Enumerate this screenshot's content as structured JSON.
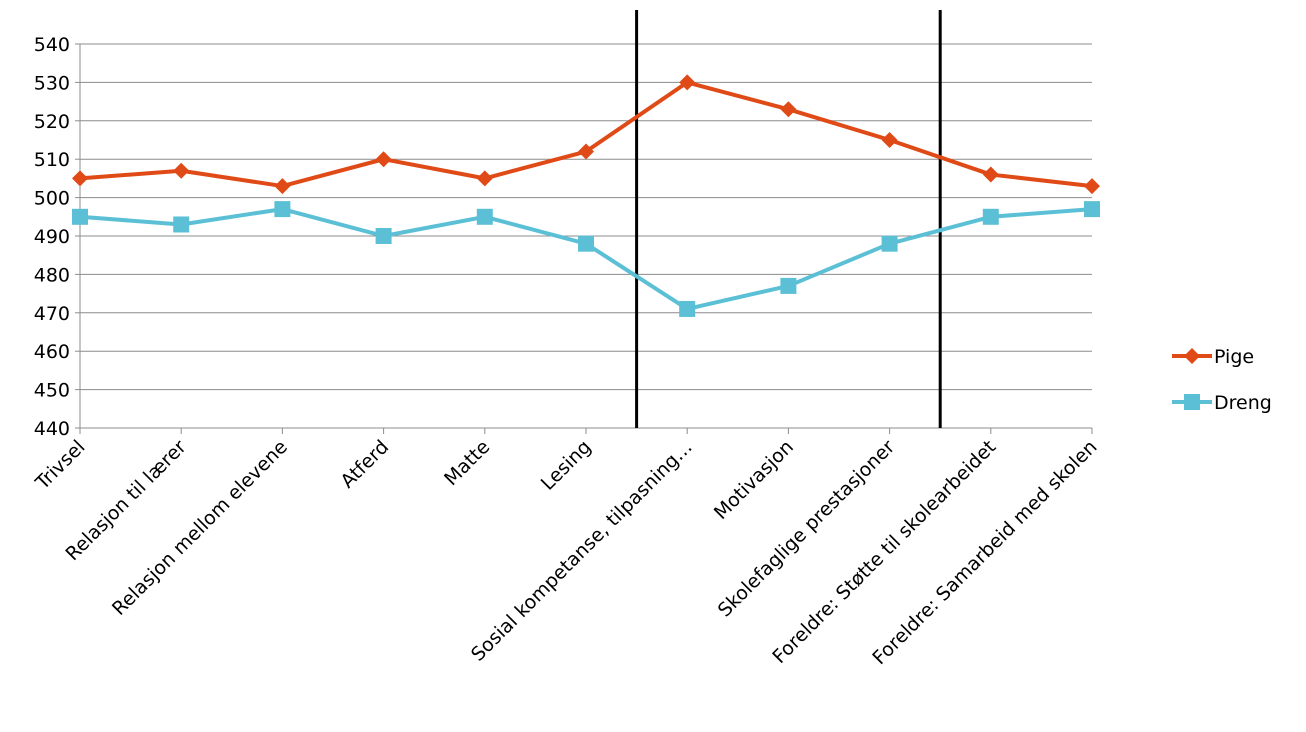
{
  "chart_data": {
    "type": "line",
    "categories": [
      "Trivsel",
      "Relasjon til lærer",
      "Relasjon mellom elevene",
      "Atferd",
      "Matte",
      "Lesing",
      "Sosial kompetanse, tilpasning…",
      "Motivasjon",
      "Skolefaglige prestasjoner",
      "Foreldre: Støtte til skolearbeidet",
      "Foreldre: Samarbeid med skolen"
    ],
    "series": [
      {
        "name": "Pige",
        "color": "#E04A17",
        "marker": "diamond",
        "values": [
          505,
          507,
          503,
          510,
          505,
          512,
          530,
          523,
          515,
          506,
          503
        ]
      },
      {
        "name": "Dreng",
        "color": "#5BC0D6",
        "marker": "square",
        "values": [
          495,
          493,
          497,
          490,
          495,
          488,
          471,
          477,
          488,
          495,
          497
        ]
      }
    ],
    "ylim": [
      440,
      540
    ],
    "yticks": [
      440,
      450,
      460,
      470,
      480,
      490,
      500,
      510,
      520,
      530,
      540
    ],
    "grid": true,
    "legend_position": "right",
    "separators_after_category": [
      "Lesing",
      "Skolefaglige prestasjoner"
    ],
    "title": "",
    "xlabel": "",
    "ylabel": ""
  }
}
